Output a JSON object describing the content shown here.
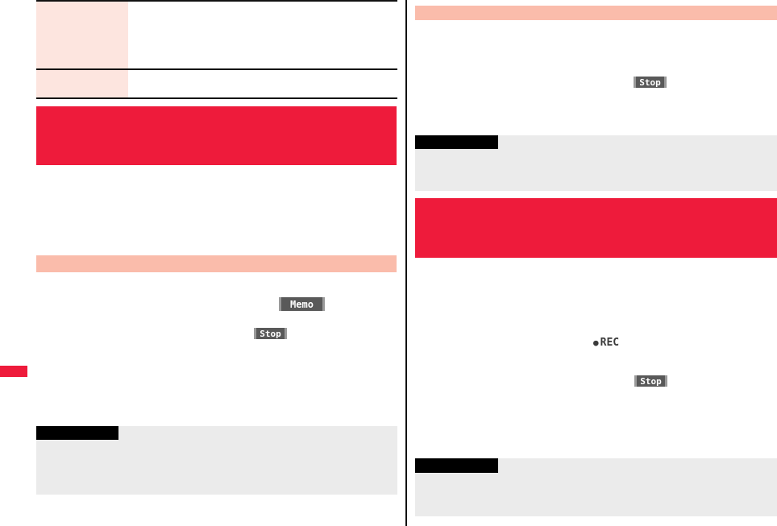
{
  "colors": {
    "red": "#ee1b3b",
    "light_pink": "#fde5df",
    "salmon": "#fabcab",
    "panel_gray": "#ebebeb",
    "button_gray": "#595959",
    "button_edge": "#9a9a9a",
    "bar_black": "#000000",
    "rule_black": "#111111",
    "rec_color": "#3a3a3a"
  },
  "left_column": {
    "memo_button_label": "Memo",
    "stop_button_label": "Stop"
  },
  "right_column": {
    "stop_button_top_label": "Stop",
    "stop_button_bottom_label": "Stop",
    "rec_indicator": {
      "dot": "●",
      "label": "REC"
    }
  }
}
